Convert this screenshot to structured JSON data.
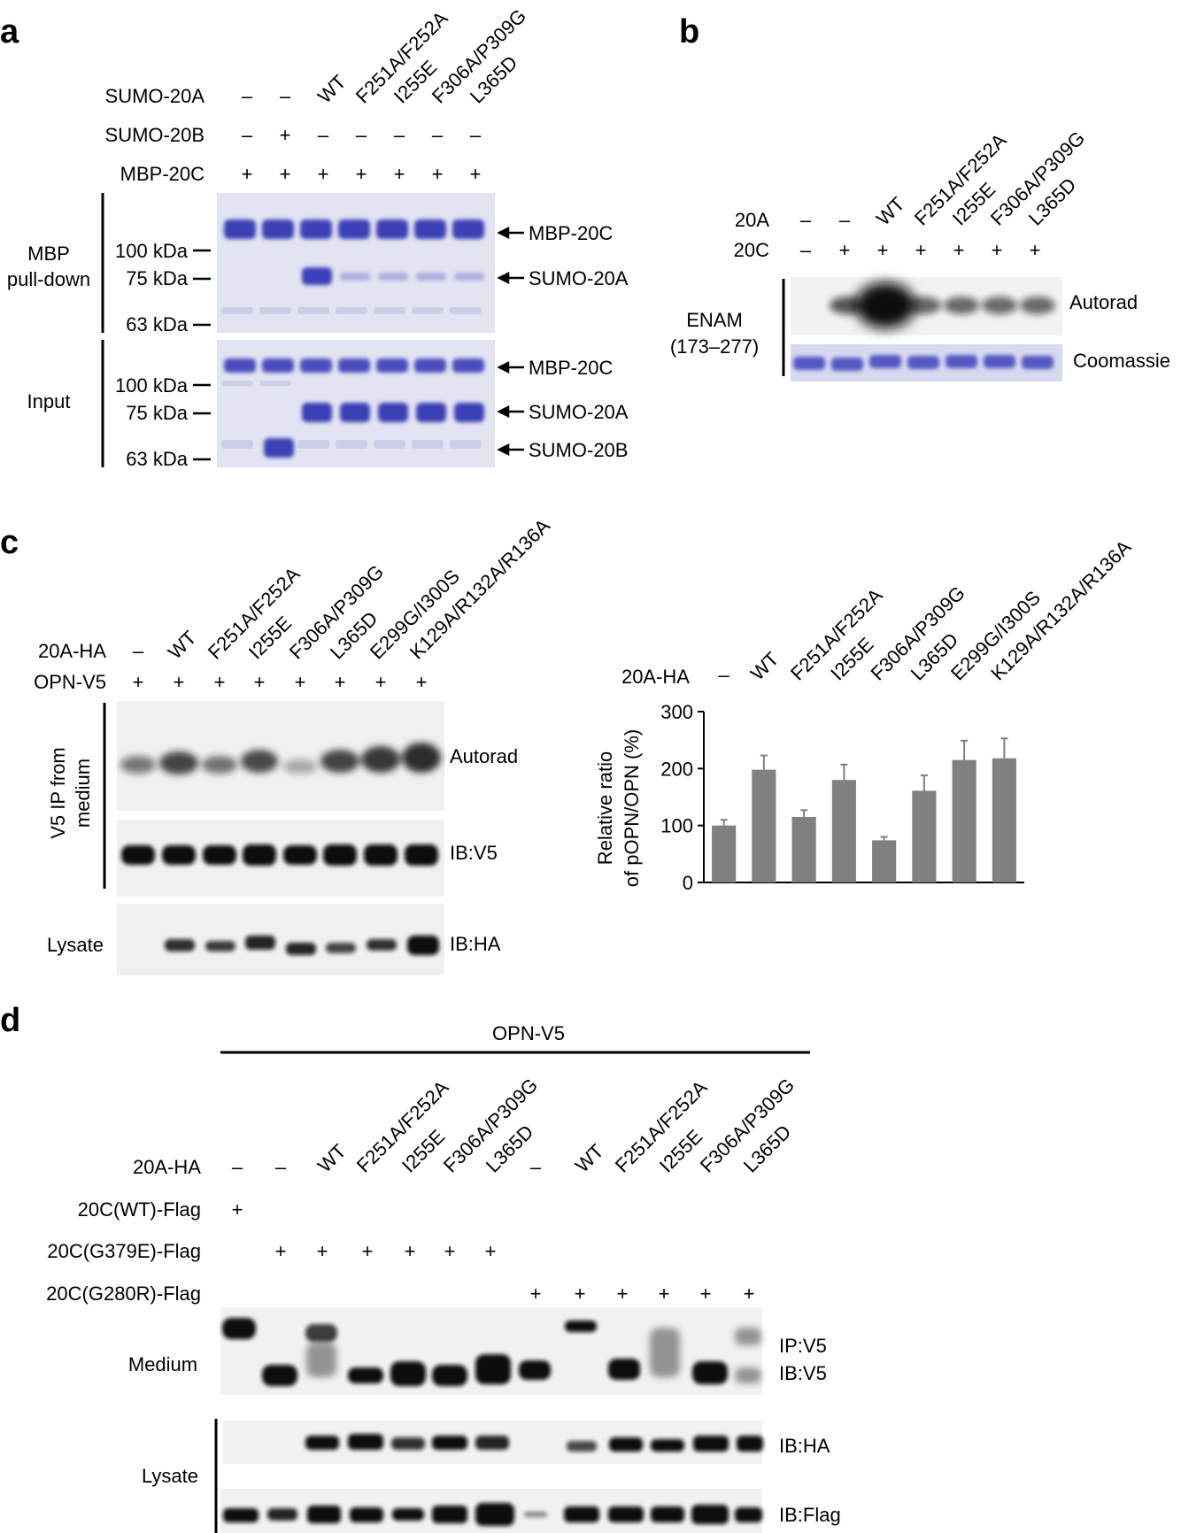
{
  "panels": {
    "a": {
      "letter": "a",
      "column_labels": [
        "WT",
        "F251A/F252A",
        "I255E",
        "F306A/P309G",
        "L365D"
      ],
      "rows": [
        {
          "label": "SUMO-20A",
          "marks": [
            "–",
            "–",
            "",
            "",
            "",
            "",
            ""
          ]
        },
        {
          "label": "SUMO-20B",
          "marks": [
            "–",
            "+",
            "–",
            "–",
            "–",
            "–",
            "–"
          ]
        },
        {
          "label": "MBP-20C",
          "marks": [
            "+",
            "+",
            "+",
            "+",
            "+",
            "+",
            "+"
          ]
        }
      ],
      "pulldown_label": [
        "MBP",
        "pull-down"
      ],
      "input_label": "Input",
      "pulldown_markers": [
        "100 kDa",
        "75 kDa",
        "63 kDa"
      ],
      "input_markers": [
        "100 kDa",
        "75 kDa",
        "63 kDa"
      ],
      "pulldown_bands": [
        "MBP-20C",
        "SUMO-20A"
      ],
      "input_bands": [
        "MBP-20C",
        "SUMO-20A",
        "SUMO-20B"
      ]
    },
    "b": {
      "letter": "b",
      "column_labels": [
        "WT",
        "F251A/F252A",
        "I255E",
        "F306A/P309G",
        "L365D"
      ],
      "rows": [
        {
          "label": "20A",
          "marks": [
            "–",
            "–",
            "",
            "",
            "",
            "",
            ""
          ]
        },
        {
          "label": "20C",
          "marks": [
            "–",
            "+",
            "+",
            "+",
            "+",
            "+",
            "+"
          ]
        }
      ],
      "side_label": [
        "ENAM",
        "(173–277)"
      ],
      "blot_labels": [
        "Autorad",
        "Coomassie"
      ],
      "autorad_intensity": [
        0,
        0.45,
        1,
        0.35,
        0.35,
        0.35,
        0.35
      ]
    },
    "c": {
      "letter": "c",
      "column_labels": [
        "WT",
        "F251A/F252A",
        "I255E",
        "F306A/P309G",
        "L365D",
        "E299G/I300S",
        "K129A/R132A/R136A"
      ],
      "rows": [
        {
          "label": "20A-HA",
          "marks": [
            "–",
            "",
            "",
            "",
            "",
            "",
            "",
            ""
          ]
        },
        {
          "label": "OPN-V5",
          "marks": [
            "+",
            "+",
            "+",
            "+",
            "+",
            "+",
            "+",
            "+"
          ]
        }
      ],
      "ip_label": [
        "V5 IP from",
        "medium"
      ],
      "lysate_label": "Lysate",
      "blot_labels": [
        "Autorad",
        "IB:V5",
        "IB:HA"
      ]
    },
    "d": {
      "letter": "d",
      "group_label": "OPN-V5",
      "column_labels_left": [
        "WT",
        "F251A/F252A",
        "I255E",
        "F306A/P309G",
        "L365D"
      ],
      "column_labels_right": [
        "WT",
        "F251A/F252A",
        "I255E",
        "F306A/P309G",
        "L365D"
      ],
      "rows": [
        {
          "label": "20A-HA",
          "marks": [
            "–",
            "–",
            "",
            "",
            "",
            "",
            "",
            "–",
            "",
            "",
            "",
            "",
            ""
          ]
        },
        {
          "label": "20C(WT)-Flag",
          "marks": [
            "+",
            "",
            "",
            "",
            "",
            "",
            "",
            "",
            "",
            "",
            "",
            "",
            ""
          ]
        },
        {
          "label": "20C(G379E)-Flag",
          "marks": [
            "",
            "+",
            "+",
            "+",
            "+",
            "+",
            "+",
            "",
            "",
            "",
            "",
            "",
            ""
          ]
        },
        {
          "label": "20C(G280R)-Flag",
          "marks": [
            "",
            "",
            "",
            "",
            "",
            "",
            "",
            "+",
            "+",
            "+",
            "+",
            "+",
            "+"
          ]
        }
      ],
      "medium_label": "Medium",
      "lysate_label": "Lysate",
      "blot_labels": [
        "IP:V5",
        "IB:V5",
        "IB:HA",
        "IB:Flag"
      ]
    }
  },
  "chart_data": {
    "type": "bar",
    "categories": [
      "–",
      "WT",
      "F251A/F252A",
      "I255E",
      "F306A/P309G",
      "L365D",
      "E299G/I300S",
      "K129A/R132A/R136A"
    ],
    "category_header": "20A-HA",
    "values": [
      100,
      198,
      115,
      180,
      74,
      161,
      215,
      218
    ],
    "errors": [
      10,
      25,
      12,
      27,
      6,
      27,
      34,
      35
    ],
    "ylabel": [
      "Relative ratio",
      "of pOPN/OPN (%)"
    ],
    "ylim": [
      0,
      300
    ],
    "yticks": [
      0,
      100,
      200,
      300
    ],
    "grid": false,
    "bar_color": "#808080"
  }
}
